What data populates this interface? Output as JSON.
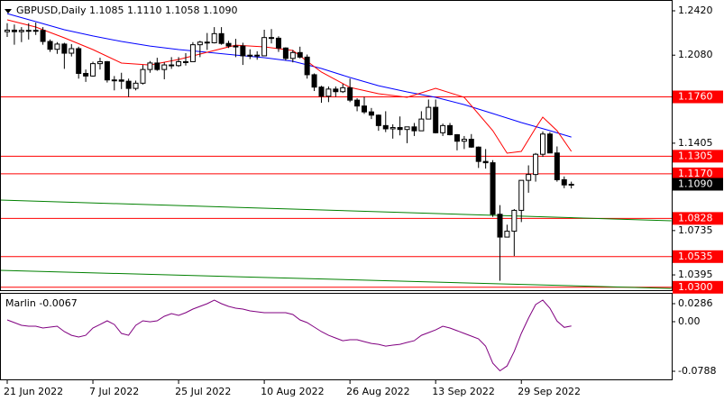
{
  "chart_data": {
    "type": "candlestick",
    "title": "GBPUSD,Daily  1.1085 1.1110 1.1058 1.1090",
    "categories": [
      "21 Jun 2022",
      null,
      null,
      null,
      null,
      null,
      null,
      null,
      null,
      null,
      null,
      null,
      "7 Jul 2022",
      null,
      null,
      null,
      null,
      null,
      null,
      null,
      null,
      null,
      null,
      null,
      "25 Jul 2022",
      null,
      null,
      null,
      null,
      null,
      null,
      null,
      null,
      null,
      null,
      null,
      "10 Aug 2022",
      null,
      null,
      null,
      null,
      null,
      null,
      null,
      null,
      null,
      null,
      null,
      "26 Aug 2022",
      null,
      null,
      null,
      null,
      null,
      null,
      null,
      null,
      null,
      null,
      null,
      "13 Sep 2022",
      null,
      null,
      null,
      null,
      null,
      null,
      null,
      null,
      null,
      null,
      null,
      "29 Sep 2022",
      null,
      null,
      null,
      null,
      null,
      null,
      null
    ],
    "open": [
      1.226,
      1.2272,
      1.226,
      1.227,
      1.2265,
      1.227,
      1.2185,
      1.2125,
      1.2165,
      1.2095,
      1.213,
      1.194,
      1.192,
      1.2015,
      1.203,
      1.189,
      1.189,
      1.188,
      1.1825,
      1.1865,
      1.197,
      1.202,
      1.197,
      1.2005,
      1.2,
      1.203,
      1.203,
      1.216,
      1.218,
      1.2175,
      1.2245,
      1.217,
      1.215,
      1.215,
      1.2075,
      1.208,
      1.2075,
      1.2215,
      1.221,
      1.2135,
      1.2055,
      1.21,
      1.2065,
      1.193,
      1.1835,
      1.1765,
      1.182,
      1.18,
      1.183,
      1.1735,
      1.169,
      1.1645,
      1.162,
      1.154,
      1.1515,
      1.1525,
      1.151,
      1.153,
      1.15,
      1.159,
      1.168,
      1.1485,
      1.154,
      1.147,
      1.142,
      1.1435,
      1.1375,
      1.1265,
      1.1255,
      1.086,
      1.0685,
      1.073,
      1.089,
      1.112,
      1.1165,
      1.132,
      1.1475,
      1.133,
      1.1125,
      1.1085
    ],
    "high": [
      1.2325,
      1.2315,
      1.2295,
      1.2325,
      1.233,
      1.2295,
      1.22,
      1.218,
      1.2175,
      1.2165,
      1.2145,
      1.197,
      1.203,
      1.206,
      1.2035,
      1.192,
      1.1945,
      1.19,
      1.1885,
      1.2005,
      1.2035,
      1.206,
      1.2025,
      1.2065,
      1.2065,
      1.2095,
      1.218,
      1.219,
      1.225,
      1.2295,
      1.2295,
      1.219,
      1.2205,
      1.2175,
      1.2125,
      1.211,
      1.2275,
      1.228,
      1.2225,
      1.214,
      1.212,
      1.2145,
      1.2085,
      1.194,
      1.1845,
      1.184,
      1.184,
      1.186,
      1.19,
      1.175,
      1.176,
      1.1675,
      1.1625,
      1.165,
      1.155,
      1.161,
      1.153,
      1.156,
      1.165,
      1.174,
      1.174,
      1.1555,
      1.156,
      1.1475,
      1.146,
      1.1475,
      1.138,
      1.136,
      1.1275,
      1.093,
      1.078,
      1.09,
      1.112,
      1.1235,
      1.133,
      1.1495,
      1.149,
      1.138,
      1.115,
      1.111
    ],
    "low": [
      1.222,
      1.216,
      1.218,
      1.22,
      1.2235,
      1.216,
      1.2105,
      1.209,
      1.1975,
      1.207,
      1.19,
      1.1875,
      1.1915,
      1.197,
      1.187,
      1.181,
      1.182,
      1.176,
      1.181,
      1.1855,
      1.1945,
      1.196,
      1.1895,
      1.1975,
      1.199,
      1.2,
      1.203,
      1.2065,
      1.212,
      1.217,
      1.216,
      1.2135,
      1.2065,
      1.2005,
      1.205,
      1.2045,
      1.2075,
      1.217,
      1.2105,
      1.204,
      1.2025,
      1.2055,
      1.19,
      1.1805,
      1.1715,
      1.172,
      1.176,
      1.179,
      1.172,
      1.165,
      1.163,
      1.159,
      1.15,
      1.149,
      1.144,
      1.1465,
      1.1405,
      1.146,
      1.15,
      1.159,
      1.148,
      1.146,
      1.1465,
      1.135,
      1.136,
      1.137,
      1.1215,
      1.121,
      1.084,
      1.035,
      1.0685,
      1.054,
      1.08,
      1.1025,
      1.111,
      1.13,
      1.133,
      1.111,
      1.106,
      1.1058
    ],
    "close": [
      1.2272,
      1.226,
      1.227,
      1.2265,
      1.227,
      1.2185,
      1.2125,
      1.2165,
      1.2095,
      1.213,
      1.194,
      1.192,
      1.2015,
      1.203,
      1.189,
      1.189,
      1.188,
      1.1825,
      1.1865,
      1.197,
      1.202,
      1.197,
      1.2005,
      1.2,
      1.203,
      1.203,
      1.216,
      1.218,
      1.2175,
      1.2245,
      1.217,
      1.215,
      1.215,
      1.2075,
      1.208,
      1.2075,
      1.2215,
      1.221,
      1.2135,
      1.2055,
      1.21,
      1.2065,
      1.193,
      1.1835,
      1.1765,
      1.182,
      1.18,
      1.183,
      1.1735,
      1.169,
      1.1645,
      1.162,
      1.154,
      1.1515,
      1.1525,
      1.151,
      1.153,
      1.15,
      1.159,
      1.168,
      1.1485,
      1.154,
      1.147,
      1.142,
      1.1435,
      1.1375,
      1.1265,
      1.1255,
      1.086,
      1.0685,
      1.073,
      1.089,
      1.112,
      1.1165,
      1.132,
      1.1475,
      1.133,
      1.1125,
      1.1085,
      1.109
    ],
    "up_color": "#ffffff",
    "down_color": "#000000",
    "ylim": [
      1.0271,
      1.2503
    ],
    "yticks": [
      {
        "value": 1.242,
        "label": "1.2420"
      },
      {
        "value": 1.208,
        "label": "1.2080"
      },
      1.1405,
      1.0735,
      1.0395
    ],
    "levels": [
      {
        "value": 1.176,
        "label": "1.1760"
      },
      1.1305,
      {
        "value": 1.117,
        "label": "1.1170"
      },
      1.0828,
      1.0535,
      {
        "value": 1.03,
        "label": "1.0300"
      }
    ],
    "level_color": "#ff0000",
    "current_price": {
      "value": 1.109,
      "label": "1.1090"
    },
    "trendlines": [
      {
        "color": "#008000",
        "x": [
          -1,
          93
        ],
        "values": [
          1.0969,
          1.081
        ]
      },
      {
        "color": "#008000",
        "x": [
          -1,
          93
        ],
        "values": [
          1.043,
          1.0291
        ]
      }
    ],
    "overlays": [
      {
        "color": "#0000ff",
        "x": [
          0,
          4,
          8,
          12,
          16,
          20,
          24,
          28,
          32,
          36,
          40,
          44,
          48,
          52,
          56,
          60,
          64,
          68,
          72,
          76,
          79
        ],
        "values": [
          1.2399,
          1.2337,
          1.2275,
          1.2227,
          1.2185,
          1.215,
          1.2123,
          1.2102,
          1.2081,
          1.2061,
          1.2033,
          1.1978,
          1.1909,
          1.1846,
          1.1798,
          1.1757,
          1.1701,
          1.1632,
          1.1563,
          1.1501,
          1.1452
        ]
      },
      {
        "color": "#ff0000",
        "x": [
          0,
          4,
          8,
          12,
          16,
          20,
          24,
          28,
          32,
          36,
          40,
          44,
          48,
          52,
          56,
          60,
          64,
          68,
          70,
          72,
          74,
          75,
          77,
          79
        ],
        "values": [
          1.2351,
          1.2296,
          1.2213,
          1.2123,
          1.2019,
          1.2005,
          1.2047,
          1.2102,
          1.2157,
          1.2144,
          1.2116,
          1.195,
          1.1833,
          1.1784,
          1.1757,
          1.1826,
          1.1757,
          1.1501,
          1.1328,
          1.1342,
          1.1522,
          1.1605,
          1.1501,
          1.1342
        ]
      }
    ],
    "indicator": {
      "type": "line",
      "label": "Marlin -0.0067",
      "color": "#800080",
      "values": [
        0.0028,
        -0.0015,
        -0.0058,
        -0.0072,
        -0.0072,
        -0.0101,
        -0.0086,
        -0.0072,
        -0.0158,
        -0.0216,
        -0.0244,
        -0.0216,
        -0.0101,
        -0.0044,
        0.0014,
        -0.0044,
        -0.0187,
        -0.0216,
        -0.0058,
        0.0014,
        -0.0001,
        0.0014,
        0.0085,
        0.0128,
        0.01,
        0.0143,
        0.02,
        0.0243,
        0.0286,
        0.0343,
        0.0286,
        0.0243,
        0.0214,
        0.02,
        0.0171,
        0.0157,
        0.0143,
        0.0143,
        0.0143,
        0.0143,
        0.0114,
        0.0028,
        -0.0015,
        -0.0086,
        -0.0158,
        -0.0216,
        -0.0259,
        -0.0302,
        -0.0287,
        -0.0287,
        -0.0316,
        -0.0345,
        -0.0359,
        -0.0388,
        -0.0373,
        -0.0359,
        -0.033,
        -0.0302,
        -0.0216,
        -0.0173,
        -0.013,
        -0.0072,
        -0.0101,
        -0.0144,
        -0.0187,
        -0.023,
        -0.0273,
        -0.0388,
        -0.066,
        -0.078,
        -0.0703,
        -0.0474,
        -0.0187,
        0.0057,
        0.0272,
        0.0343,
        0.0214,
        0.001,
        -0.009,
        -0.0067
      ],
      "ylim": [
        -0.0931,
        0.0458
      ],
      "yticks": [
        0.0286,
        {
          "value": 0,
          "label": "0.00"
        },
        -0.0788
      ]
    }
  }
}
